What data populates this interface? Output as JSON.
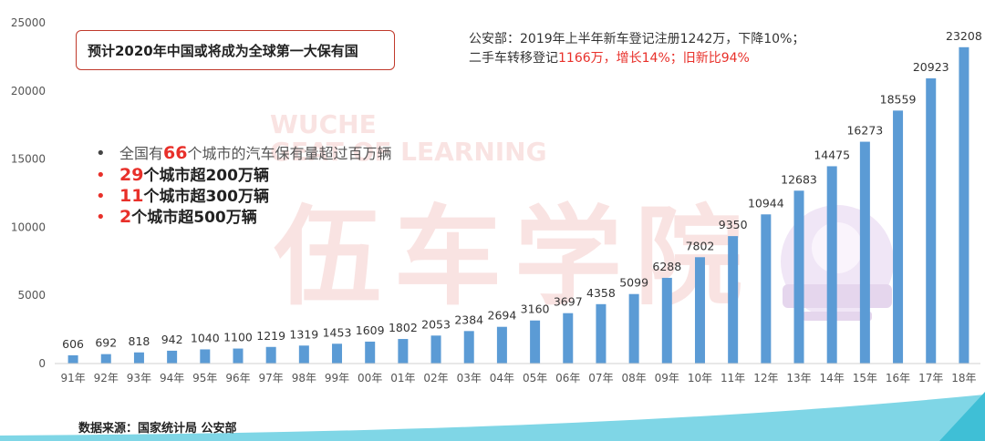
{
  "chart_data": {
    "type": "bar",
    "categories": [
      "91年",
      "92年",
      "93年",
      "94年",
      "95年",
      "96年",
      "97年",
      "98年",
      "99年",
      "00年",
      "01年",
      "02年",
      "03年",
      "04年",
      "05年",
      "06年",
      "07年",
      "08年",
      "09年",
      "10年",
      "11年",
      "12年",
      "13年",
      "14年",
      "15年",
      "16年",
      "17年",
      "18年"
    ],
    "values": [
      606,
      692,
      818,
      942,
      1040,
      1100,
      1219,
      1319,
      1453,
      1609,
      1802,
      2053,
      2384,
      2694,
      3160,
      3697,
      4358,
      5099,
      6288,
      7802,
      9350,
      10944,
      12683,
      14475,
      16273,
      18559,
      20923,
      23208
    ],
    "y_ticks": [
      0,
      5000,
      10000,
      15000,
      20000,
      25000
    ],
    "ylim": [
      0,
      25000
    ],
    "bar_color": "#5b9bd5",
    "grid": false,
    "legend": "none"
  },
  "title_box": {
    "text": "预计2020年中国或将成为全球第一大保有国"
  },
  "note": {
    "line1": "公安部：2019年上半年新车登记注册1242万，下降10%；",
    "line2_prefix": "二手车转移登记",
    "line2_red": "1166万，增长14%；旧新比94%"
  },
  "bullets": [
    {
      "prefix": "全国有",
      "num": "66",
      "suffix": "个城市的汽车保有量超过百万辆"
    },
    {
      "prefix": "",
      "num": "29",
      "suffix": "个城市超200万辆"
    },
    {
      "prefix": "",
      "num": "11",
      "suffix": "个城市超300万辆"
    },
    {
      "prefix": "",
      "num": "2",
      "suffix": "个城市超500万辆"
    }
  ],
  "bullet_colors": {
    "first": "#444444",
    "rest": "#e8302a"
  },
  "source": "数据来源：国家统计局 公安部",
  "watermark": {
    "cn": "伍车学院",
    "en_line1": "WUCHE",
    "en_line2": "GEAT OF LEARNING"
  },
  "icons": {
    "mascot": "mascot-logo-icon",
    "brand": "brand-logo-icon"
  }
}
